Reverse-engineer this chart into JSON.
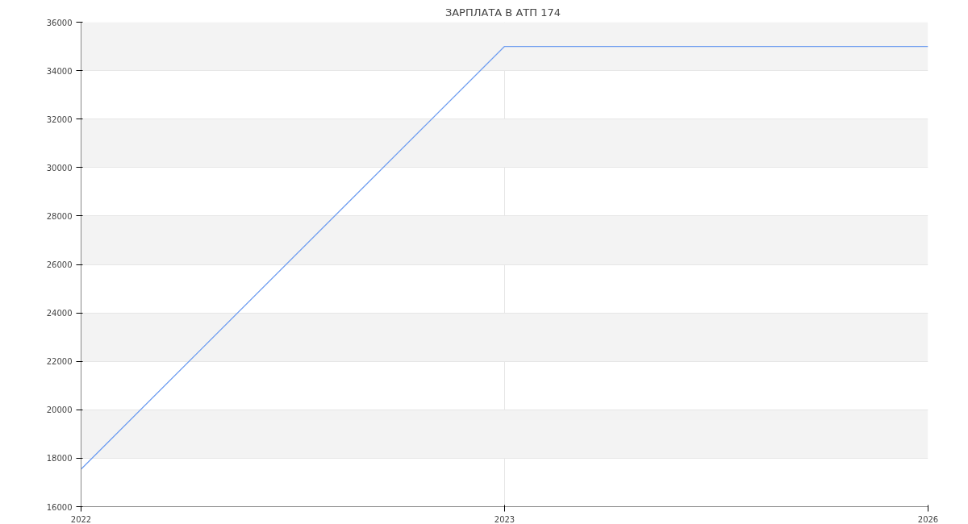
{
  "chart_data": {
    "type": "line",
    "title": "ЗАРПЛАТА В  АТП 174",
    "categories": [
      "2022",
      "2023",
      "2026"
    ],
    "series": [
      {
        "color": "#6d9cf0",
        "values": [
          17550,
          35000,
          35000
        ]
      }
    ],
    "ylim": [
      16000,
      36000
    ],
    "yticks": [
      16000,
      18000,
      20000,
      22000,
      24000,
      26000,
      28000,
      30000,
      32000,
      34000,
      36000
    ],
    "grid": true,
    "marker": "none",
    "line_style": "solid"
  }
}
